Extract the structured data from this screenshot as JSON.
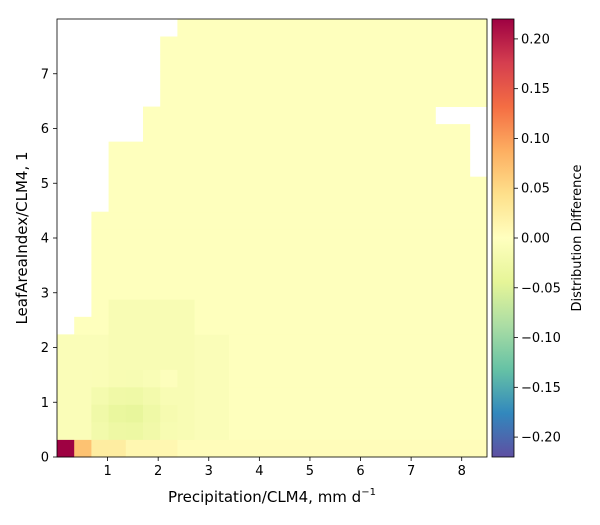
{
  "chart_data": {
    "type": "heatmap",
    "xlabel": "Precipitation/CLM4,  mm d",
    "xlabel_sup": "−1",
    "ylabel": "LeafAreaIndex/CLM4,  1",
    "xlim": [
      0,
      8.5
    ],
    "ylim": [
      0,
      8
    ],
    "x_ticks": [
      1,
      2,
      3,
      4,
      5,
      6,
      7,
      8
    ],
    "x_tick_labels": [
      "1",
      "2",
      "3",
      "4",
      "5",
      "6",
      "7",
      "8"
    ],
    "y_ticks": [
      0,
      1,
      2,
      3,
      4,
      5,
      6,
      7
    ],
    "y_tick_labels": [
      "0",
      "1",
      "2",
      "3",
      "4",
      "5",
      "6",
      "7"
    ],
    "bin_width_x": 0.34,
    "bin_width_y": 0.32,
    "colorbar": {
      "label": "Distribution Difference",
      "range": [
        -0.22,
        0.22
      ],
      "colormap": "Spectral_r",
      "ticks": [
        0.2,
        0.15,
        0.1,
        0.05,
        0.0,
        -0.05,
        -0.1,
        -0.15,
        -0.2
      ],
      "tick_labels": [
        "0.20",
        "0.15",
        "0.10",
        "0.05",
        "0.00",
        "−0.05",
        "−0.10",
        "−0.15",
        "−0.20"
      ]
    },
    "grid": false
  }
}
